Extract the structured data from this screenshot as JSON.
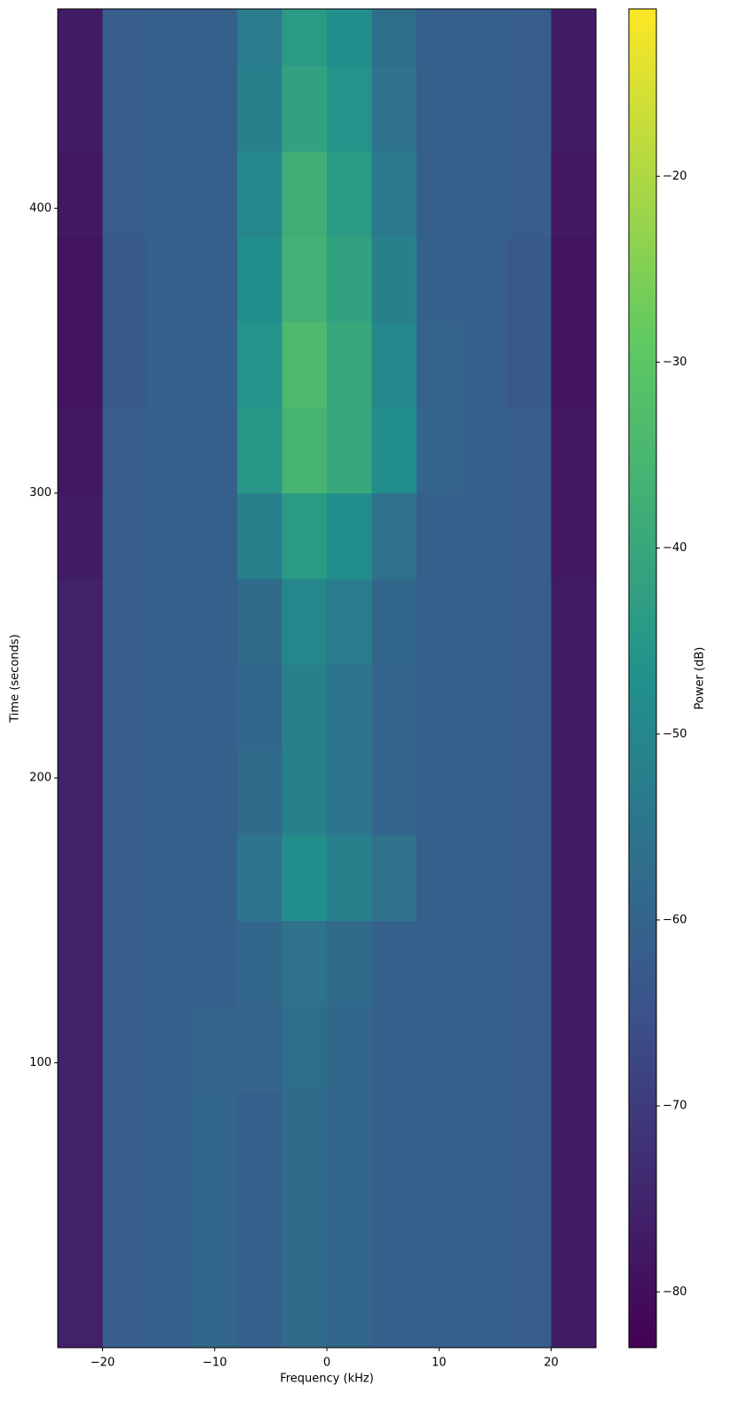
{
  "chart_data": {
    "type": "heatmap",
    "x_label": "Frequency (kHz)",
    "y_label": "Time (seconds)",
    "colorbar_label": "Power (dB)",
    "xlim": [
      -24,
      24
    ],
    "ylim": [
      0,
      470
    ],
    "xticks": [
      {
        "value": -20,
        "label": "−20"
      },
      {
        "value": -10,
        "label": "−10"
      },
      0,
      10,
      20
    ],
    "yticks": [
      100,
      200,
      300,
      400
    ],
    "clim": [
      -83,
      -11
    ],
    "cticks": [
      {
        "value": -80,
        "label": "−80"
      },
      {
        "value": -70,
        "label": "−70"
      },
      {
        "value": -60,
        "label": "−60"
      },
      {
        "value": -50,
        "label": "−50"
      },
      {
        "value": -40,
        "label": "−40"
      },
      {
        "value": -30,
        "label": "−30"
      },
      {
        "value": -20,
        "label": "−20"
      }
    ],
    "colormap": [
      "#440154",
      "#3b528b",
      "#21918c",
      "#5ec962",
      "#fde725"
    ],
    "x_bins": [
      -24,
      -20,
      -16,
      -12,
      -8,
      -4,
      0,
      4,
      8,
      12,
      16,
      20,
      24
    ],
    "y_bins": [
      0,
      30,
      60,
      90,
      120,
      150,
      180,
      210,
      240,
      270,
      300,
      330,
      360,
      390,
      420,
      450,
      470
    ],
    "values": [
      [
        -76,
        -62,
        -61,
        -59,
        -61,
        -58,
        -59,
        -61,
        -61,
        -61,
        -62,
        -77
      ],
      [
        -76,
        -62,
        -61,
        -59,
        -61,
        -58,
        -59,
        -61,
        -61,
        -61,
        -62,
        -77
      ],
      [
        -76,
        -62,
        -61,
        -59,
        -61,
        -58,
        -59,
        -61,
        -61,
        -61,
        -62,
        -77
      ],
      [
        -76,
        -62,
        -61,
        -60,
        -60,
        -57,
        -59,
        -61,
        -61,
        -61,
        -62,
        -77
      ],
      [
        -76,
        -62,
        -61,
        -61,
        -59,
        -56,
        -58,
        -61,
        -61,
        -61,
        -62,
        -77
      ],
      [
        -76,
        -62,
        -61,
        -61,
        -55,
        -48,
        -52,
        -56,
        -61,
        -61,
        -62,
        -77
      ],
      [
        -76,
        -62,
        -61,
        -61,
        -58,
        -52,
        -55,
        -60,
        -61,
        -61,
        -62,
        -77
      ],
      [
        -76,
        -62,
        -61,
        -61,
        -59,
        -52,
        -55,
        -60,
        -61,
        -61,
        -62,
        -77
      ],
      [
        -76,
        -62,
        -61,
        -61,
        -58,
        -50,
        -53,
        -59,
        -61,
        -61,
        -62,
        -77
      ],
      [
        -77,
        -62,
        -61,
        -61,
        -52,
        -44,
        -48,
        -56,
        -61,
        -61,
        -62,
        -78
      ],
      [
        -78,
        -62,
        -61,
        -61,
        -45,
        -36,
        -40,
        -48,
        -60,
        -61,
        -62,
        -78
      ],
      [
        -79,
        -63,
        -61,
        -61,
        -46,
        -34,
        -40,
        -50,
        -60,
        -61,
        -63,
        -79
      ],
      [
        -79,
        -63,
        -61,
        -61,
        -48,
        -37,
        -42,
        -52,
        -61,
        -61,
        -63,
        -79
      ],
      [
        -78,
        -62,
        -61,
        -61,
        -50,
        -38,
        -44,
        -54,
        -61,
        -61,
        -62,
        -78
      ],
      [
        -77,
        -62,
        -61,
        -61,
        -52,
        -42,
        -46,
        -56,
        -61,
        -61,
        -62,
        -77
      ],
      [
        -77,
        -62,
        -61,
        -61,
        -53,
        -44,
        -48,
        -57,
        -61,
        -61,
        -62,
        -77
      ]
    ]
  }
}
